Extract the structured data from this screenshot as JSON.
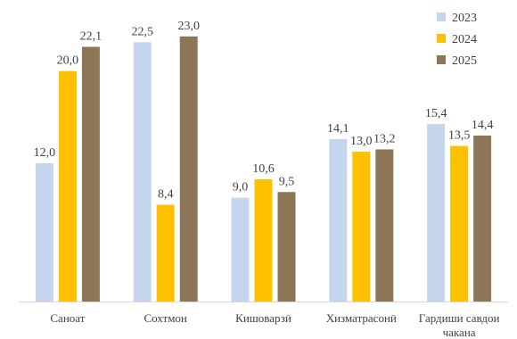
{
  "chart_data": {
    "type": "bar",
    "title": "",
    "xlabel": "",
    "ylabel": "",
    "categories": [
      "Саноат",
      "Сохтмон",
      "Кишоварзӣ",
      "Хизматрасонӣ",
      "Гардиши савдои чакана"
    ],
    "category_lines": [
      [
        "Саноат"
      ],
      [
        "Сохтмон"
      ],
      [
        "Кишоварзӣ"
      ],
      [
        "Хизматрасонӣ"
      ],
      [
        "Гардиши савдои",
        "чакана"
      ]
    ],
    "series": [
      {
        "name": "2023",
        "color": "#c5d5ee",
        "values": [
          12.0,
          22.5,
          9.0,
          14.1,
          15.4
        ],
        "labels": [
          "12,0",
          "22,5",
          "9,0",
          "14,1",
          "15,4"
        ]
      },
      {
        "name": "2024",
        "color": "#ffc000",
        "values": [
          20.0,
          8.4,
          10.6,
          13.0,
          13.5
        ],
        "labels": [
          "20,0",
          "8,4",
          "10,6",
          "13,0",
          "13,5"
        ]
      },
      {
        "name": "2025",
        "color": "#8c7656",
        "values": [
          22.1,
          23.0,
          9.5,
          13.2,
          14.4
        ],
        "labels": [
          "22,1",
          "23,0",
          "9,5",
          "13,2",
          "14,4"
        ]
      }
    ],
    "ylim": [
      0,
      25
    ],
    "grid": false,
    "y_axis_visible": false,
    "legend_position": "top-right"
  }
}
